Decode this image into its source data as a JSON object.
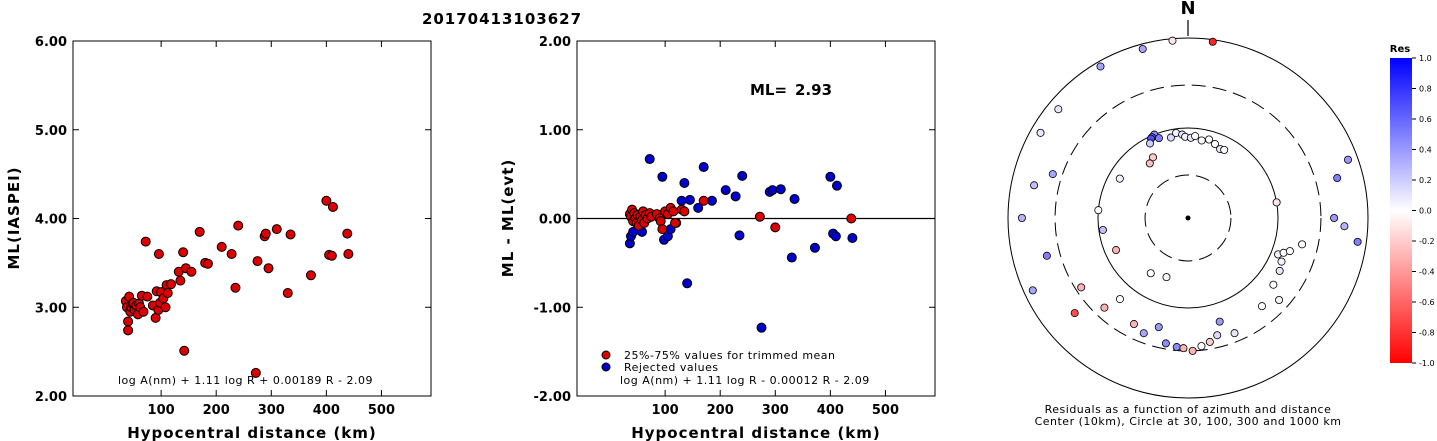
{
  "event_id": "20170413103627",
  "chart_data": [
    {
      "type": "scatter",
      "xlabel": "Hypocentral distance (km)",
      "ylabel": "ML(IASPEI)",
      "xlim": [
        -60,
        590
      ],
      "ylim": [
        2.0,
        6.0
      ],
      "x_ticks": [
        "100",
        "200",
        "300",
        "400",
        "500"
      ],
      "y_ticks": [
        "2.00",
        "3.00",
        "4.00",
        "5.00",
        "6.00"
      ],
      "formula": "log A(nm) + 1.11 log R + 0.00189 R - 2.09",
      "marker_color": "#dd0000",
      "points": [
        [
          36,
          3.07
        ],
        [
          38,
          3.0
        ],
        [
          40,
          2.84
        ],
        [
          40,
          2.74
        ],
        [
          42,
          3.12
        ],
        [
          44,
          2.95
        ],
        [
          46,
          3.0
        ],
        [
          48,
          3.04
        ],
        [
          50,
          3.05
        ],
        [
          52,
          2.97
        ],
        [
          55,
          3.02
        ],
        [
          58,
          2.92
        ],
        [
          60,
          3.04
        ],
        [
          62,
          3.0
        ],
        [
          65,
          3.13
        ],
        [
          68,
          2.95
        ],
        [
          72,
          3.74
        ],
        [
          75,
          3.12
        ],
        [
          85,
          3.02
        ],
        [
          90,
          2.88
        ],
        [
          92,
          3.18
        ],
        [
          95,
          2.97
        ],
        [
          96,
          3.6
        ],
        [
          98,
          3.05
        ],
        [
          100,
          3.17
        ],
        [
          104,
          3.1
        ],
        [
          108,
          3.0
        ],
        [
          110,
          3.25
        ],
        [
          112,
          3.16
        ],
        [
          118,
          3.26
        ],
        [
          132,
          3.4
        ],
        [
          135,
          3.3
        ],
        [
          140,
          3.62
        ],
        [
          142,
          2.51
        ],
        [
          145,
          3.44
        ],
        [
          155,
          3.4
        ],
        [
          170,
          3.85
        ],
        [
          180,
          3.5
        ],
        [
          185,
          3.49
        ],
        [
          210,
          3.68
        ],
        [
          228,
          3.6
        ],
        [
          235,
          3.22
        ],
        [
          240,
          3.92
        ],
        [
          272,
          2.26
        ],
        [
          275,
          3.52
        ],
        [
          288,
          3.8
        ],
        [
          290,
          3.83
        ],
        [
          295,
          3.44
        ],
        [
          310,
          3.88
        ],
        [
          330,
          3.16
        ],
        [
          335,
          3.82
        ],
        [
          372,
          3.36
        ],
        [
          400,
          4.2
        ],
        [
          405,
          3.59
        ],
        [
          410,
          3.58
        ],
        [
          412,
          4.13
        ],
        [
          438,
          3.83
        ],
        [
          440,
          3.6
        ]
      ]
    },
    {
      "type": "scatter",
      "xlabel": "Hypocentral distance (km)",
      "ylabel": "ML - ML(evt)",
      "xlim": [
        -60,
        590
      ],
      "ylim": [
        -2.0,
        2.0
      ],
      "x_ticks": [
        "100",
        "200",
        "300",
        "400",
        "500"
      ],
      "y_ticks": [
        "-2.00",
        "-1.00",
        "0.00",
        "1.00",
        "2.00"
      ],
      "ml_label": "ML=",
      "ml_value": "2.93",
      "formula": "log A(nm) + 1.11 log R - 0.00012 R - 2.09",
      "legend": [
        {
          "label": "25%-75% values for trimmed mean",
          "color": "#dd0000"
        },
        {
          "label": "Rejected values",
          "color": "#0000cc"
        }
      ],
      "series": [
        {
          "name": "25%-75% values for trimmed mean",
          "color": "#dd0000",
          "points": [
            [
              36,
              0.05
            ],
            [
              38,
              0.02
            ],
            [
              40,
              0.1
            ],
            [
              42,
              -0.03
            ],
            [
              44,
              0.06
            ],
            [
              46,
              0.0
            ],
            [
              48,
              -0.05
            ],
            [
              50,
              0.04
            ],
            [
              52,
              -0.08
            ],
            [
              55,
              0.02
            ],
            [
              58,
              -0.02
            ],
            [
              60,
              0.08
            ],
            [
              62,
              -0.05
            ],
            [
              65,
              0.04
            ],
            [
              68,
              0.0
            ],
            [
              72,
              0.06
            ],
            [
              75,
              0.02
            ],
            [
              85,
              0.05
            ],
            [
              90,
              0.0
            ],
            [
              92,
              -0.03
            ],
            [
              95,
              -0.12
            ],
            [
              100,
              0.08
            ],
            [
              105,
              0.05
            ],
            [
              110,
              0.12
            ],
            [
              115,
              0.08
            ],
            [
              118,
              -0.05
            ],
            [
              130,
              0.1
            ],
            [
              135,
              0.08
            ],
            [
              170,
              0.2
            ],
            [
              272,
              0.02
            ],
            [
              300,
              -0.1
            ],
            [
              438,
              0.0
            ]
          ]
        },
        {
          "name": "Rejected values",
          "color": "#0000cc",
          "points": [
            [
              36,
              -0.28
            ],
            [
              38,
              -0.2
            ],
            [
              42,
              -0.15
            ],
            [
              58,
              -0.15
            ],
            [
              72,
              0.67
            ],
            [
              95,
              0.47
            ],
            [
              98,
              -0.24
            ],
            [
              105,
              -0.2
            ],
            [
              110,
              -0.12
            ],
            [
              120,
              -0.05
            ],
            [
              130,
              0.2
            ],
            [
              135,
              0.4
            ],
            [
              140,
              -0.73
            ],
            [
              145,
              0.21
            ],
            [
              160,
              0.12
            ],
            [
              170,
              0.58
            ],
            [
              185,
              0.2
            ],
            [
              210,
              0.32
            ],
            [
              228,
              0.25
            ],
            [
              235,
              -0.19
            ],
            [
              240,
              0.48
            ],
            [
              275,
              -1.23
            ],
            [
              290,
              0.3
            ],
            [
              295,
              0.32
            ],
            [
              310,
              0.33
            ],
            [
              330,
              -0.44
            ],
            [
              335,
              0.22
            ],
            [
              372,
              -0.33
            ],
            [
              400,
              0.47
            ],
            [
              405,
              -0.17
            ],
            [
              410,
              -0.2
            ],
            [
              412,
              0.37
            ],
            [
              440,
              -0.22
            ]
          ]
        }
      ]
    },
    {
      "type": "polar-scatter",
      "north_label": "N",
      "caption_line1": "Residuals as a function of azimuth and distance",
      "caption_line2": "Center (10km), Circle at 30, 100, 300 and 1000 km",
      "rings": [
        {
          "distance_km": 30,
          "style": "dashed"
        },
        {
          "distance_km": 100,
          "style": "solid"
        },
        {
          "distance_km": 300,
          "style": "dashed"
        },
        {
          "distance_km": 1000,
          "style": "solid"
        }
      ],
      "points_azimuth_distance_residual": [
        [
          355,
          950,
          -0.1
        ],
        [
          8,
          950,
          -0.85
        ],
        [
          330,
          880,
          0.35
        ],
        [
          345,
          880,
          0.35
        ],
        [
          310,
          760,
          0.1
        ],
        [
          300,
          780,
          0.1
        ],
        [
          270,
          700,
          0.3
        ],
        [
          282,
          560,
          0.25
        ],
        [
          288,
          380,
          0.35
        ],
        [
          255,
          420,
          0.5
        ],
        [
          245,
          800,
          0.35
        ],
        [
          230,
          440,
          -0.7
        ],
        [
          237,
          260,
          -0.3
        ],
        [
          223,
          230,
          -0.3
        ],
        [
          207,
          210,
          -0.3
        ],
        [
          201,
          235,
          0.35
        ],
        [
          195,
          180,
          0.4
        ],
        [
          190,
          260,
          0.45
        ],
        [
          185,
          275,
          0.45
        ],
        [
          182,
          280,
          -0.3
        ],
        [
          178,
          300,
          -0.3
        ],
        [
          174,
          270,
          0.0
        ],
        [
          170,
          250,
          -0.2
        ],
        [
          166,
          220,
          0.15
        ],
        [
          163,
          160,
          0.4
        ],
        [
          158,
          240,
          0.1
        ],
        [
          140,
          190,
          0.0
        ],
        [
          132,
          230,
          0.05
        ],
        [
          128,
          160,
          0.0
        ],
        [
          120,
          150,
          0.1
        ],
        [
          115,
          140,
          0.05
        ],
        [
          112,
          120,
          0.05
        ],
        [
          110,
          135,
          0.0
        ],
        [
          108,
          155,
          0.0
        ],
        [
          103,
          200,
          0.0
        ],
        [
          98,
          800,
          0.5
        ],
        [
          93,
          550,
          0.3
        ],
        [
          90,
          420,
          0.4
        ],
        [
          75,
          520,
          0.5
        ],
        [
          70,
          780,
          0.4
        ],
        [
          80,
          100,
          -0.1
        ],
        [
          338,
          100,
          0.45
        ],
        [
          336,
          96,
          0.55
        ],
        [
          335,
          94,
          0.7
        ],
        [
          340,
          88,
          0.5
        ],
        [
          333,
          85,
          0.2
        ],
        [
          348,
          82,
          0.15
        ],
        [
          352,
          90,
          0.05
        ],
        [
          356,
          85,
          0.1
        ],
        [
          358,
          80,
          0.05
        ],
        [
          2,
          78,
          0.1
        ],
        [
          5,
          82,
          0.0
        ],
        [
          10,
          75,
          0.0
        ],
        [
          15,
          80,
          0.0
        ],
        [
          20,
          75,
          0.0
        ],
        [
          25,
          70,
          0.1
        ],
        [
          28,
          72,
          0.0
        ],
        [
          220,
          150,
          0.0
        ],
        [
          275,
          100,
          0.0
        ],
        [
          262,
          90,
          0.25
        ],
        [
          246,
          75,
          -0.3
        ],
        [
          214,
          55,
          0.0
        ],
        [
          200,
          50,
          -0.05
        ],
        [
          300,
          75,
          0.05
        ],
        [
          330,
          60,
          -0.2
        ],
        [
          325,
          55,
          -0.25
        ]
      ]
    }
  ],
  "colorbar": {
    "title": "Res",
    "ticks": [
      "1.0",
      "0.8",
      "0.6",
      "0.4",
      "0.2",
      "0.0",
      "-0.2",
      "-0.4",
      "-0.6",
      "-0.8",
      "-1.0"
    ],
    "max_color": "#0000ff",
    "mid_color": "#ffffff",
    "min_color": "#ff0000"
  }
}
